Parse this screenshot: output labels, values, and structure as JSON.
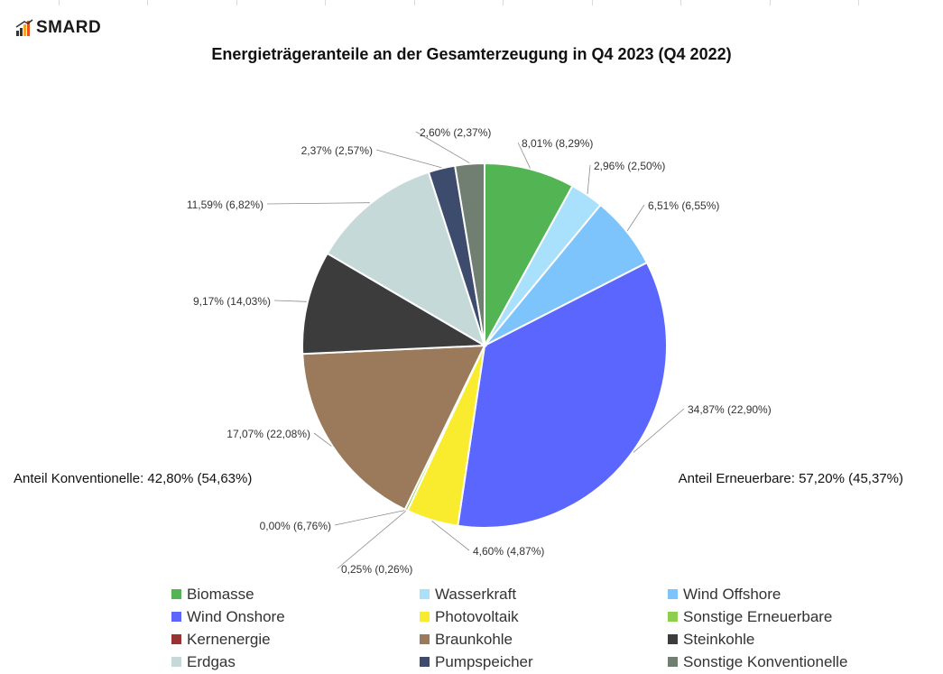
{
  "logo": {
    "text": "SMARD"
  },
  "chart_data": {
    "type": "pie",
    "title": "Energieträgeranteile an der Gesamterzeugung in Q4 2023 (Q4 2022)",
    "slices": [
      {
        "name": "Biomasse",
        "value": 8.01,
        "label": "8,01% (8,29%)",
        "color": "#52b453"
      },
      {
        "name": "Wasserkraft",
        "value": 2.96,
        "label": "2,96% (2,50%)",
        "color": "#a9e0fb"
      },
      {
        "name": "Wind Offshore",
        "value": 6.51,
        "label": "6,51% (6,55%)",
        "color": "#7cc4fb"
      },
      {
        "name": "Wind Onshore",
        "value": 34.87,
        "label": "34,87% (22,90%)",
        "color": "#5a66fd"
      },
      {
        "name": "Photovoltaik",
        "value": 4.6,
        "label": "4,60% (4,87%)",
        "color": "#f9ec2e"
      },
      {
        "name": "Sonstige Erneuerbare",
        "value": 0.25,
        "label": "0,25% (0,26%)",
        "color": "#8ccf4e"
      },
      {
        "name": "Kernenergie",
        "value": 0.0,
        "label": "0,00% (6,76%)",
        "color": "#993333"
      },
      {
        "name": "Braunkohle",
        "value": 17.07,
        "label": "17,07% (22,08%)",
        "color": "#9a7a5a"
      },
      {
        "name": "Steinkohle",
        "value": 9.17,
        "label": "9,17% (14,03%)",
        "color": "#3c3c3c"
      },
      {
        "name": "Erdgas",
        "value": 11.59,
        "label": "11,59% (6,82%)",
        "color": "#c6d9d9"
      },
      {
        "name": "Pumpspeicher",
        "value": 2.37,
        "label": "2,37% (2,57%)",
        "color": "#3d4b6d"
      },
      {
        "name": "Sonstige Konventionelle",
        "value": 2.6,
        "label": "2,60% (2,37%)",
        "color": "#717e72"
      }
    ],
    "annotations": {
      "konventionelle": "Anteil Konventionelle: 42,80% (54,63%)",
      "erneuerbare": "Anteil Erneuerbare: 57,20% (45,37%)"
    },
    "legend_position": "bottom"
  }
}
